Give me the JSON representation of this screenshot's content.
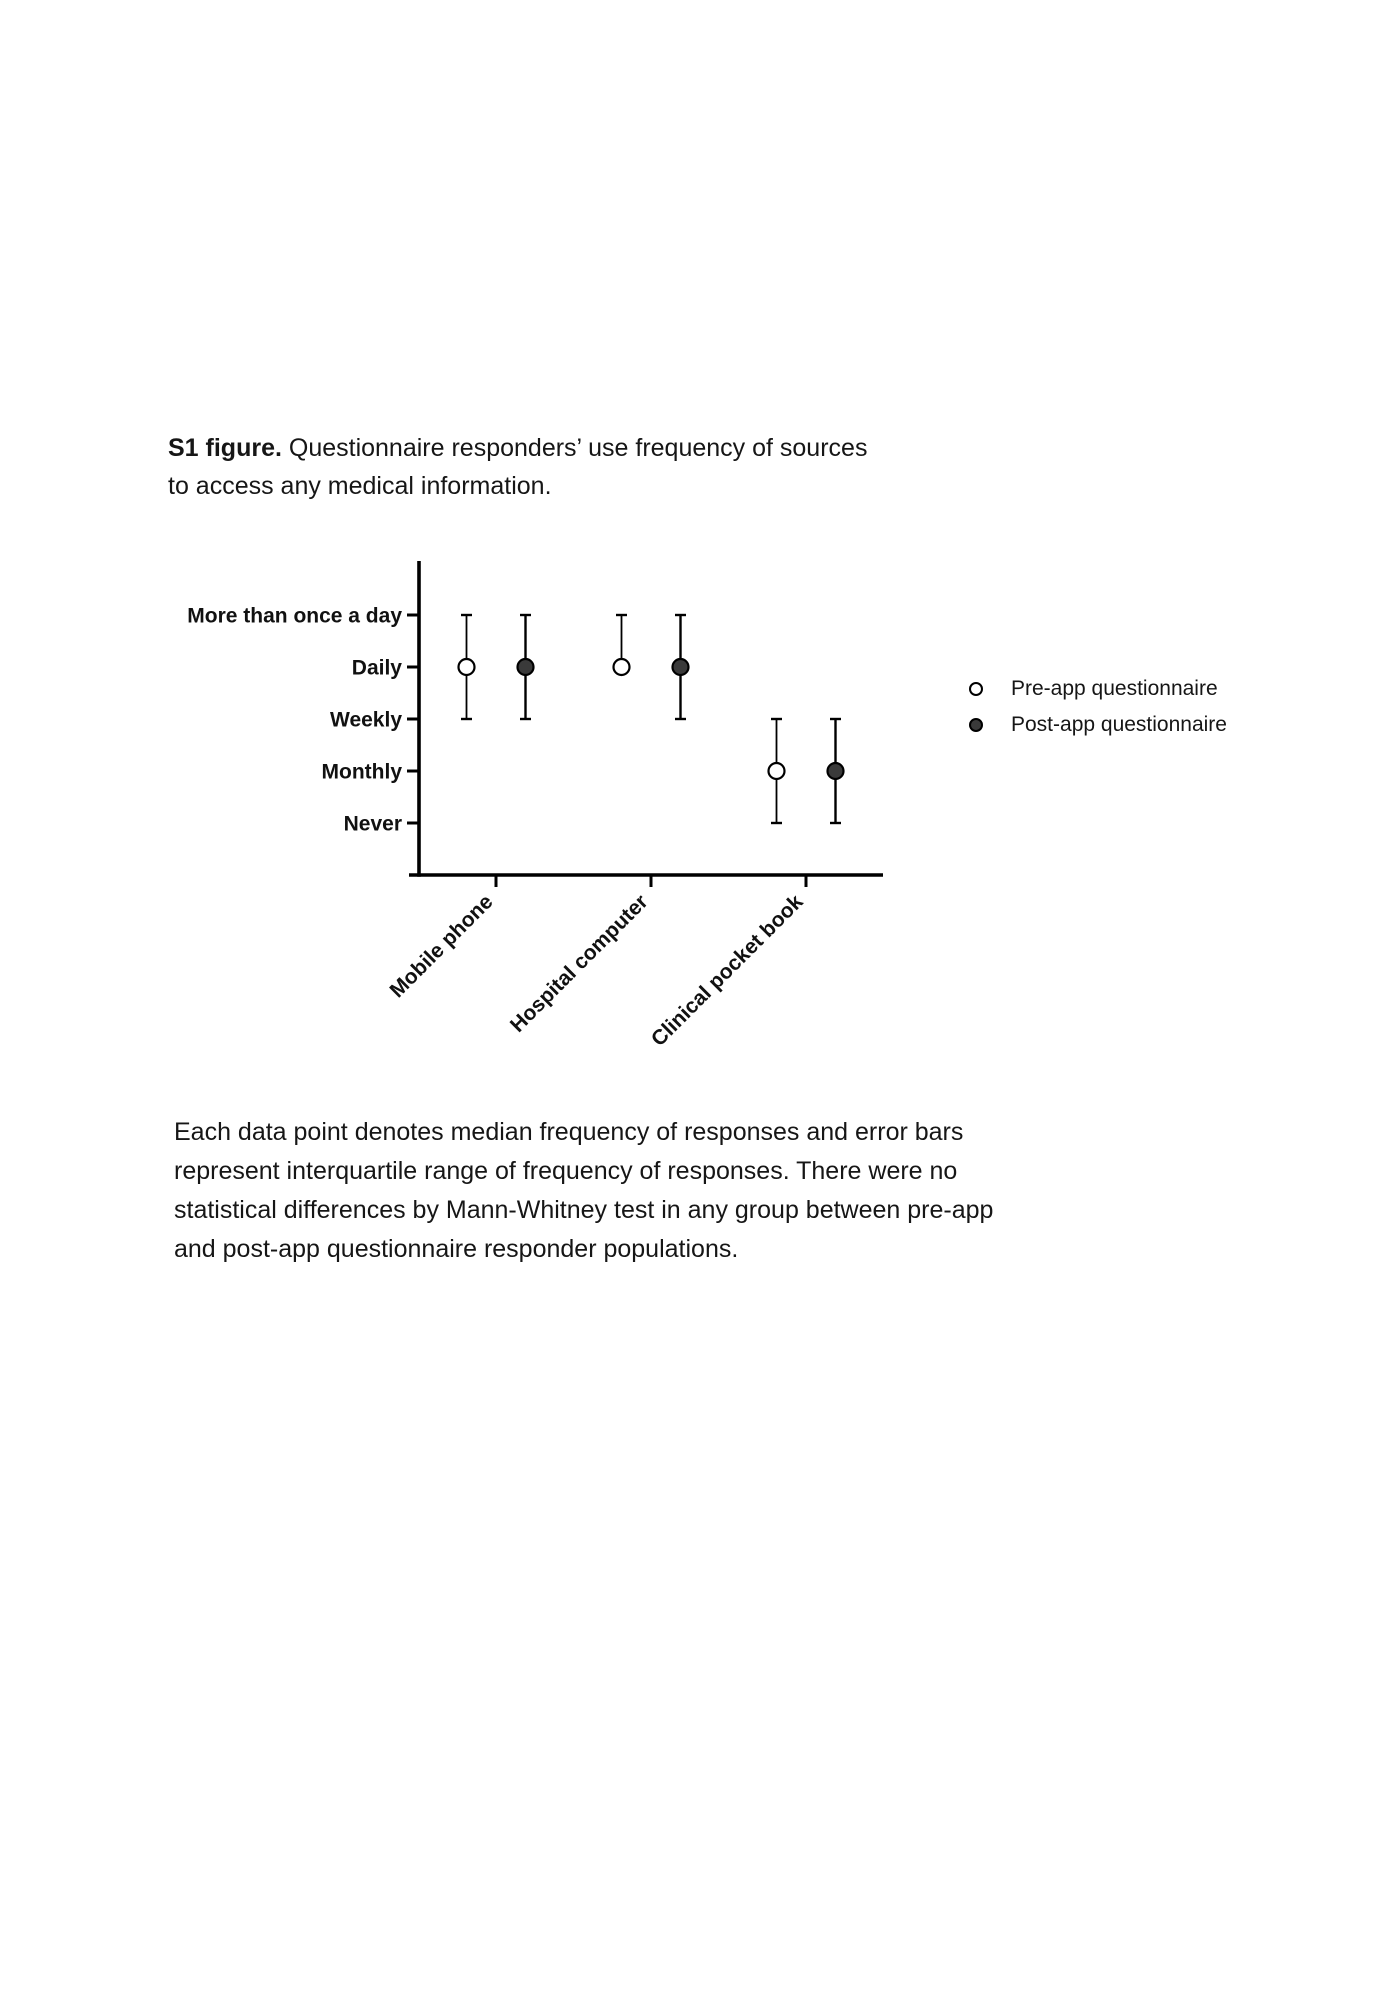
{
  "figure_title": {
    "label": "S1 figure.",
    "line1_rest": "Questionnaire responders’ use frequency of sources",
    "line2": "to access any medical information."
  },
  "legend": {
    "items": [
      {
        "label": "Pre-app questionnaire",
        "marker": "open-circle"
      },
      {
        "label": "Post-app questionnaire",
        "marker": "filled-circle"
      }
    ]
  },
  "caption": {
    "lines": [
      "Each data point denotes median frequency of responses and error bars",
      "represent interquartile range of frequency of responses. There were no",
      "statistical differences by Mann-Whitney test in any group between pre-app",
      "and post-app questionnaire responder populations."
    ]
  },
  "chart_data": {
    "type": "scatter",
    "title": "Questionnaire responders’ use frequency of sources to access any medical information",
    "xlabel": "",
    "ylabel": "",
    "grid": false,
    "legend_position": "right",
    "y_categories": [
      "More than once a day",
      "Daily",
      "Weekly",
      "Monthly",
      "Never"
    ],
    "categories": [
      "Mobile phone",
      "Hospital computer",
      "Clinical pocket book"
    ],
    "series": [
      {
        "name": "Pre-app questionnaire",
        "marker": "open-circle",
        "data": [
          {
            "category": "Mobile phone",
            "median": "Daily",
            "q1": "Weekly",
            "q3": "More than once a day"
          },
          {
            "category": "Hospital computer",
            "median": "Daily",
            "q1": "Daily",
            "q3": "More than once a day"
          },
          {
            "category": "Clinical pocket book",
            "median": "Monthly",
            "q1": "Never",
            "q3": "Weekly"
          }
        ]
      },
      {
        "name": "Post-app questionnaire",
        "marker": "filled-circle",
        "data": [
          {
            "category": "Mobile phone",
            "median": "Daily",
            "q1": "Weekly",
            "q3": "More than once a day"
          },
          {
            "category": "Hospital computer",
            "median": "Daily",
            "q1": "Weekly",
            "q3": "More than once a day"
          },
          {
            "category": "Clinical pocket book",
            "median": "Monthly",
            "q1": "Never",
            "q3": "Weekly"
          }
        ]
      }
    ],
    "colors": {
      "axis": "#000000",
      "stroke": "#000000",
      "open_marker_fill": "#ffffff",
      "filled_marker_fill": "#3a3a3a",
      "label_text": "#111111"
    }
  }
}
